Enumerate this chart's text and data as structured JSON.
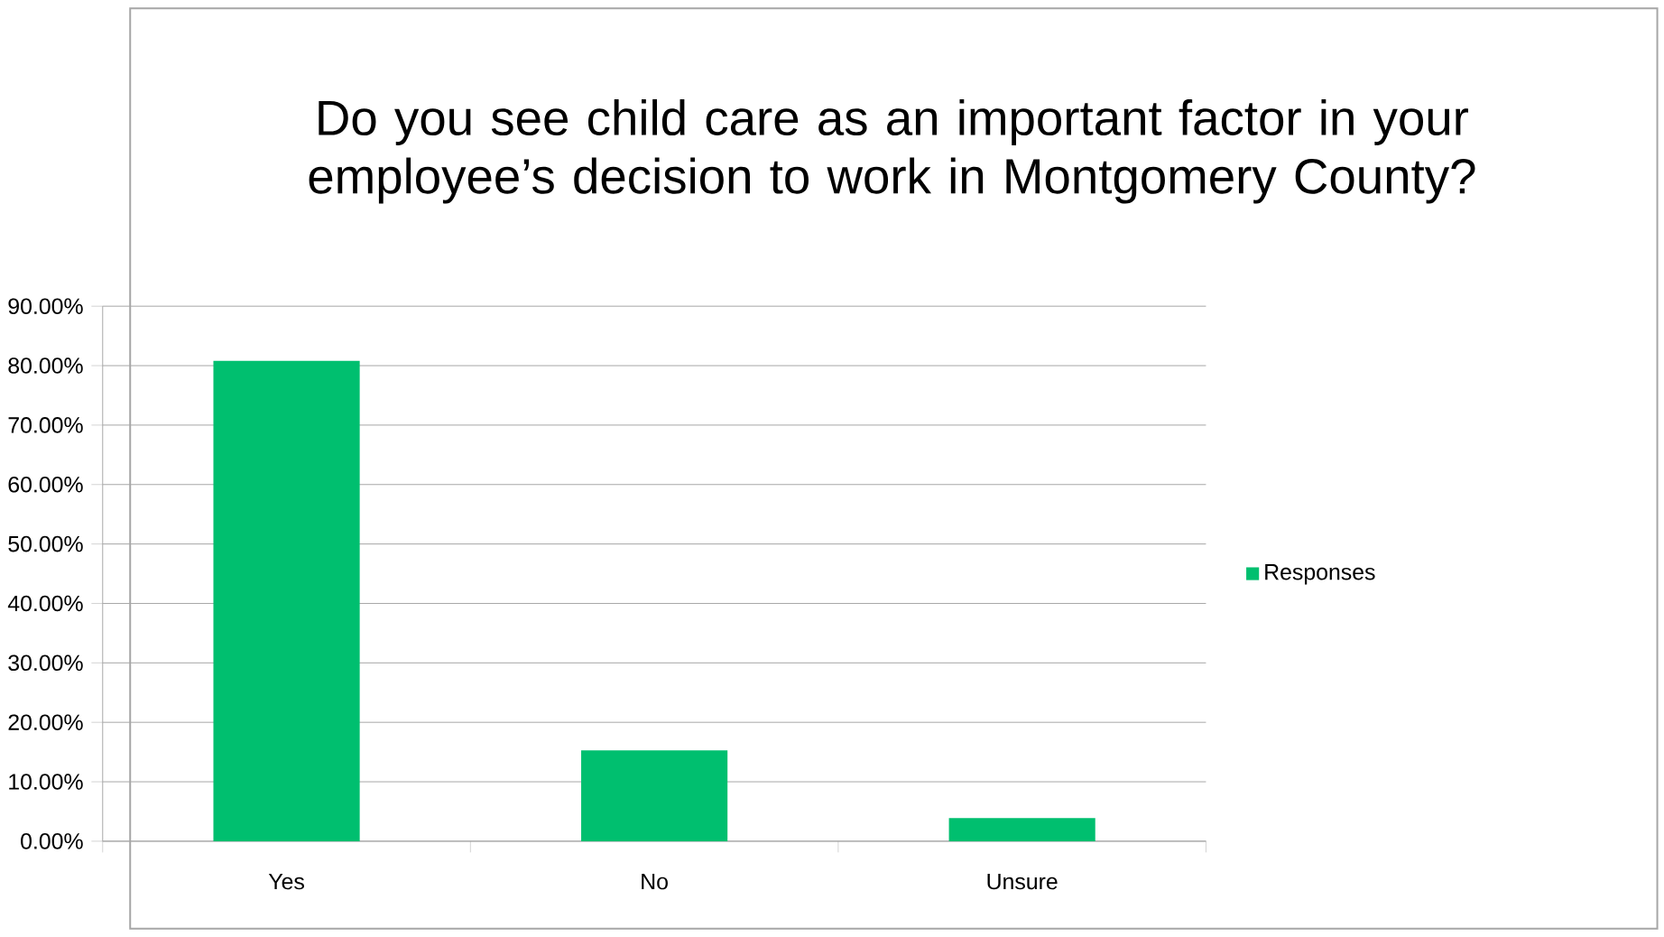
{
  "chart_data": {
    "type": "bar",
    "title": "Do you see child care as an important factor in your employee’s decision to work in Montgomery County?",
    "categories": [
      "Yes",
      "No",
      "Unsure"
    ],
    "series": [
      {
        "name": "Responses",
        "color": "#00bf6f",
        "values": [
          80.8,
          15.3,
          3.9
        ]
      }
    ],
    "ylim": [
      0,
      90
    ],
    "yticks": [
      {
        "value": 0,
        "label": "0.00%"
      },
      {
        "value": 10,
        "label": "10.00%"
      },
      {
        "value": 20,
        "label": "20.00%"
      },
      {
        "value": 30,
        "label": "30.00%"
      },
      {
        "value": 40,
        "label": "40.00%"
      },
      {
        "value": 50,
        "label": "50.00%"
      },
      {
        "value": 60,
        "label": "60.00%"
      },
      {
        "value": 70,
        "label": "70.00%"
      },
      {
        "value": 80,
        "label": "80.00%"
      },
      {
        "value": 90,
        "label": "90.00%"
      }
    ],
    "grid": "y",
    "legend": "right"
  }
}
